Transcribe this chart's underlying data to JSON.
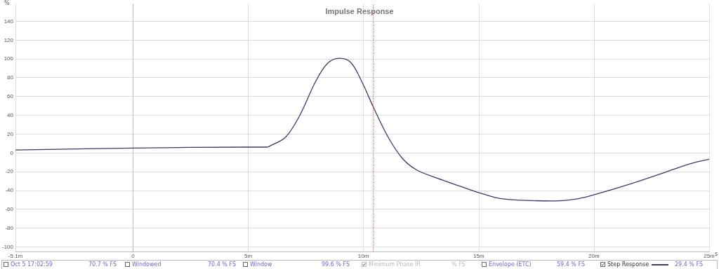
{
  "chart_data": {
    "type": "line",
    "title": "Impulse Response",
    "xlabel": "s",
    "ylabel": "%",
    "x": [
      -5.1,
      0,
      5,
      5.8,
      5.9,
      6.62,
      7.22,
      7.93,
      8.44,
      8.95,
      9.45,
      9.96,
      10.42,
      11.07,
      11.68,
      12.29,
      13.2,
      14.2,
      15.02,
      16.04,
      18.27,
      19.28,
      20.1,
      21.6,
      23.1,
      24.14,
      25
    ],
    "series": [
      {
        "name": "Step Response",
        "color": "#3a3a6e",
        "values": [
          3,
          5,
          6,
          6,
          6.7,
          16.6,
          39,
          76,
          95,
          100.5,
          96,
          74,
          49,
          16.6,
          -5.7,
          -18,
          -27,
          -35.6,
          -42.5,
          -49,
          -51.2,
          -49,
          -44,
          -33,
          -20.7,
          -12,
          -7
        ]
      }
    ],
    "xlim": [
      -5.1,
      25
    ],
    "xticks": [
      {
        "value": -5.1,
        "label": "-5.1m"
      },
      0,
      {
        "value": 5,
        "label": "5m"
      },
      {
        "value": 10,
        "label": "10m"
      },
      {
        "value": 15,
        "label": "15m"
      },
      {
        "value": 20,
        "label": "20m"
      },
      {
        "value": 25,
        "label": "25m"
      }
    ],
    "ylim": [
      -105,
      158
    ],
    "yticks": [
      -100,
      -80,
      -60,
      -40,
      -20,
      0,
      20,
      40,
      60,
      80,
      100,
      120,
      140
    ],
    "grid": true,
    "legend": "bottom",
    "marker": "none",
    "line_style": "solid",
    "ref_lines": [
      {
        "axis": "x",
        "value": 10.4,
        "color": "#e06060",
        "line_style": "dotted"
      }
    ],
    "annotations": [
      "Oct 5 17:02:59",
      "70.7 % FS",
      "Windowed",
      "70.4 % FS",
      "Window",
      "99.6 % FS",
      "Minimum Phase IR",
      "% FS",
      "Envelope (ETC)",
      "59.4 % FS",
      "29.4 % FS"
    ]
  }
}
